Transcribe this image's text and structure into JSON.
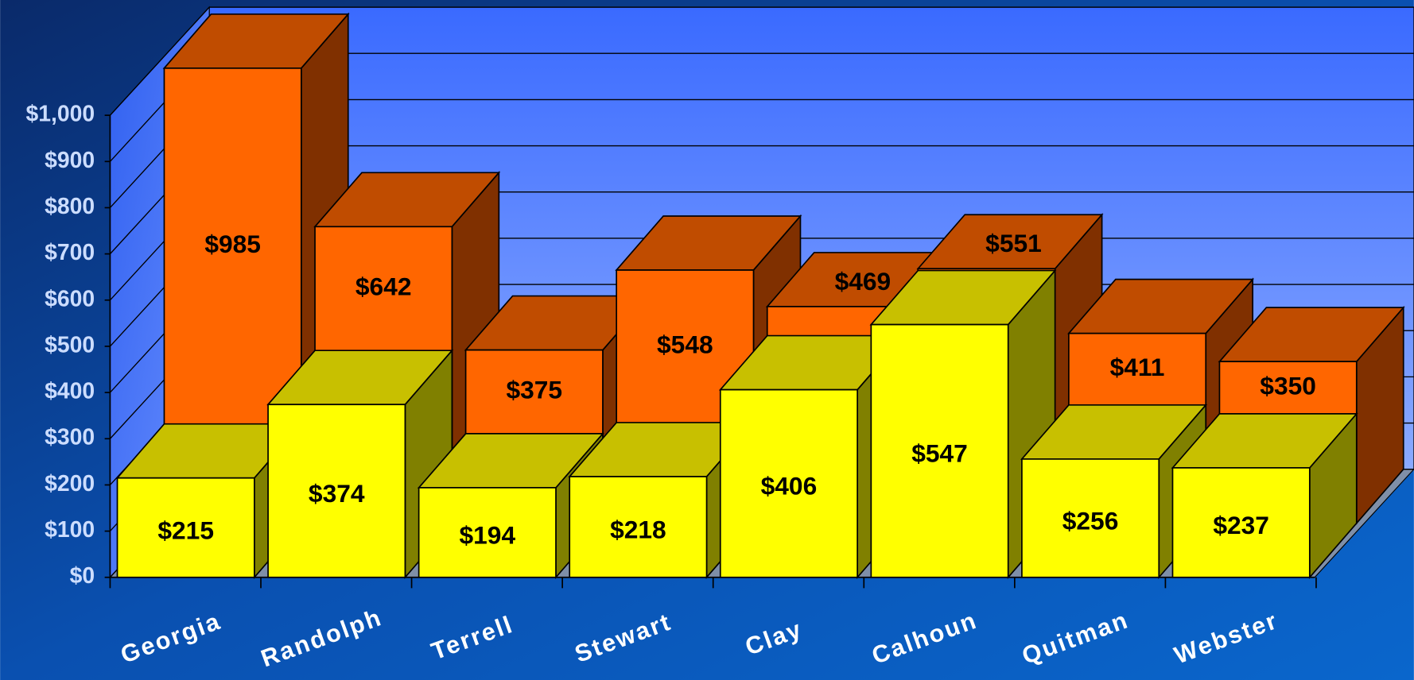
{
  "chart_data": {
    "type": "bar3d",
    "categories": [
      "Georgia",
      "Randolph",
      "Terrell",
      "Stewart",
      "Clay",
      "Calhoun",
      "Quitman",
      "Webster"
    ],
    "series": [
      {
        "color": "#ff6600",
        "values": [
          985,
          642,
          375,
          548,
          469,
          551,
          411,
          350
        ],
        "value_labels": [
          "$985",
          "$642",
          "$375",
          "$548",
          "$469",
          "$551",
          "$411",
          "$350"
        ]
      },
      {
        "color": "#ffff00",
        "values": [
          215,
          374,
          194,
          218,
          406,
          547,
          256,
          237
        ],
        "value_labels": [
          "$215",
          "$374",
          "$194",
          "$218",
          "$406",
          "$547",
          "$256",
          "$237"
        ]
      }
    ],
    "ylim": [
      0,
      1000
    ],
    "yticks": [
      {
        "value": 0,
        "label": "$0"
      },
      {
        "value": 100,
        "label": "$100"
      },
      {
        "value": 200,
        "label": "$200"
      },
      {
        "value": 300,
        "label": "$300"
      },
      {
        "value": 400,
        "label": "$400"
      },
      {
        "value": 500,
        "label": "$500"
      },
      {
        "value": 600,
        "label": "$600"
      },
      {
        "value": 700,
        "label": "$700"
      },
      {
        "value": 800,
        "label": "$800"
      },
      {
        "value": 900,
        "label": "$900"
      },
      {
        "value": 1000,
        "label": "$1,000"
      }
    ],
    "grid": true
  }
}
